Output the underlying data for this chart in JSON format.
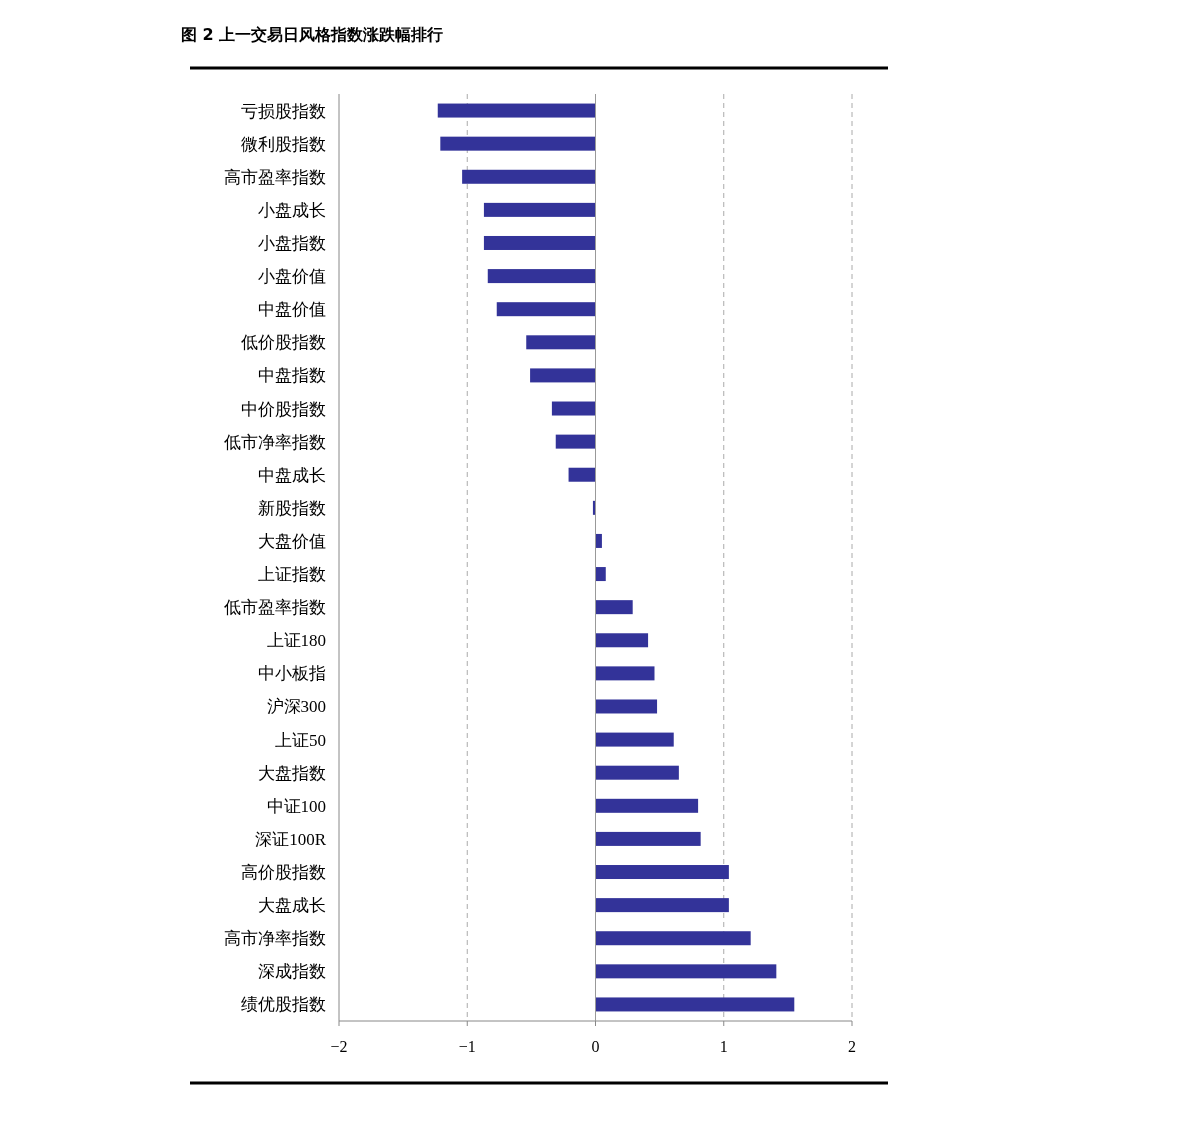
{
  "chart_data": {
    "type": "bar",
    "orientation": "horizontal",
    "title": "图 2 上一交易日风格指数涨跌幅排行",
    "categories": [
      "亏损股指数",
      "微利股指数",
      "高市盈率指数",
      "小盘成长",
      "小盘指数",
      "小盘价值",
      "中盘价值",
      "低价股指数",
      "中盘指数",
      "中价股指数",
      "低市净率指数",
      "中盘成长",
      "新股指数",
      "大盘价值",
      "上证指数",
      "低市盈率指数",
      "上证180",
      "中小板指",
      "沪深300",
      "上证50",
      "大盘指数",
      "中证100",
      "深证100R",
      "高价股指数",
      "大盘成长",
      "高市净率指数",
      "深成指数",
      "绩优股指数"
    ],
    "values": [
      -1.23,
      -1.21,
      -1.04,
      -0.87,
      -0.87,
      -0.84,
      -0.77,
      -0.54,
      -0.51,
      -0.34,
      -0.31,
      -0.21,
      -0.02,
      0.05,
      0.08,
      0.29,
      0.41,
      0.46,
      0.48,
      0.61,
      0.65,
      0.8,
      0.82,
      1.04,
      1.04,
      1.21,
      1.41,
      1.55
    ],
    "color": "#333399",
    "xlim": [
      -2,
      2
    ],
    "xticks": [
      {
        "value": -2,
        "label": "−2"
      },
      {
        "value": -1,
        "label": "−1"
      },
      0,
      1,
      2
    ],
    "grid": "x"
  }
}
